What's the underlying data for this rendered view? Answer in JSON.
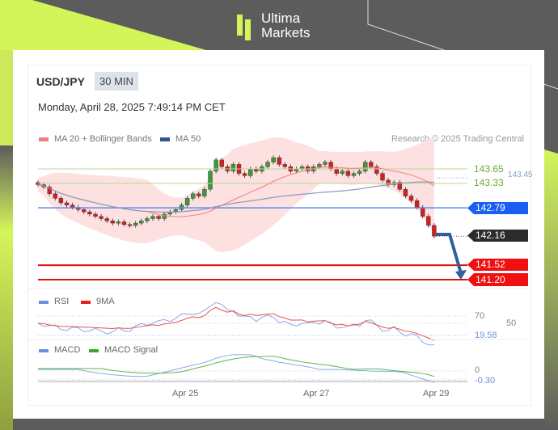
{
  "brand": {
    "line1": "Ultima",
    "line2": "Markets",
    "accent": "#d4f55a"
  },
  "header": {
    "symbol": "USD/JPY",
    "timeframe": "30 MIN",
    "datetime": "Monday, April 28, 2025 7:49:14 PM CET"
  },
  "legend": {
    "ma20": "MA 20 + Bollinger Bands",
    "ma50": "MA 50",
    "ma20_color": "#f47c7c",
    "ma50_color": "#2f5597",
    "credit": "Research © 2025 Trading Central"
  },
  "levels": {
    "resistance2": "143.65",
    "ma50": "143.45",
    "resistance1": "143.33",
    "pivot": "142.79",
    "last": "142.16",
    "support1": "141.52",
    "support2": "141.20"
  },
  "rsi": {
    "label": "RSI",
    "ma_label": "9MA",
    "l70": "70",
    "l50": "50",
    "value": "19.58"
  },
  "macd": {
    "label": "MACD",
    "signal_label": "MACD Signal",
    "zero": "0",
    "value": "-0.30"
  },
  "xaxis": [
    "Apr 25",
    "Apr 27",
    "Apr 29"
  ],
  "chart_data": {
    "type": "candlestick",
    "title": "USD/JPY 30 MIN",
    "ylim": [
      141.0,
      144.2
    ],
    "closes": [
      143.3,
      143.25,
      143.1,
      143.0,
      142.9,
      142.85,
      142.8,
      142.75,
      142.7,
      142.65,
      142.6,
      142.55,
      142.5,
      142.45,
      142.48,
      142.42,
      142.4,
      142.45,
      142.5,
      142.55,
      142.6,
      142.55,
      142.65,
      142.7,
      142.75,
      142.85,
      143.0,
      143.1,
      143.05,
      143.2,
      143.6,
      143.85,
      143.7,
      143.6,
      143.75,
      143.55,
      143.5,
      143.65,
      143.6,
      143.7,
      143.8,
      143.9,
      143.75,
      143.7,
      143.6,
      143.65,
      143.7,
      143.6,
      143.7,
      143.75,
      143.8,
      143.65,
      143.55,
      143.6,
      143.5,
      143.55,
      143.6,
      143.8,
      143.7,
      143.55,
      143.4,
      143.3,
      143.35,
      143.2,
      143.05,
      142.95,
      142.8,
      142.6,
      142.4,
      142.16
    ],
    "horizontal_levels": [
      143.65,
      143.33,
      142.79,
      141.52,
      141.2
    ],
    "rsi_last": 19.58,
    "macd_last": -0.3
  }
}
